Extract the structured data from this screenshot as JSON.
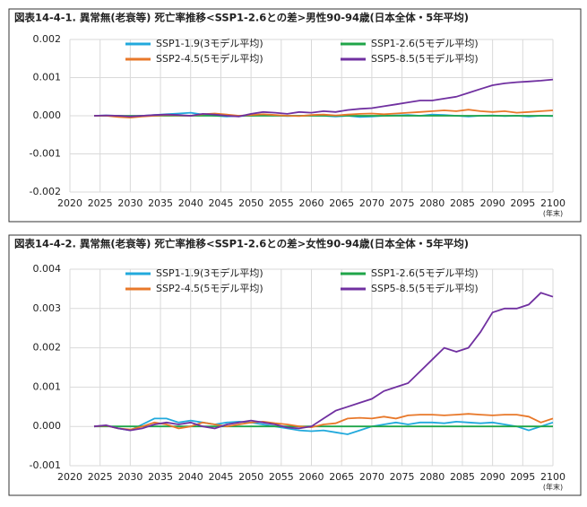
{
  "chart_data": [
    {
      "type": "line",
      "title": "図表14-4-1. 異常無(老衰等) 死亡率推移<SSP1-2.6との差>男性90-94歳(日本全体・5年平均)",
      "x_unit": "(年末)",
      "x": [
        2024,
        2026,
        2028,
        2030,
        2032,
        2034,
        2036,
        2038,
        2040,
        2042,
        2044,
        2046,
        2048,
        2050,
        2052,
        2054,
        2056,
        2058,
        2060,
        2062,
        2064,
        2066,
        2068,
        2070,
        2072,
        2074,
        2076,
        2078,
        2080,
        2082,
        2084,
        2086,
        2088,
        2090,
        2092,
        2094,
        2096,
        2098,
        2100
      ],
      "xlim": [
        2020,
        2100
      ],
      "xticks": [
        2020,
        2025,
        2030,
        2035,
        2040,
        2045,
        2050,
        2055,
        2060,
        2065,
        2070,
        2075,
        2080,
        2085,
        2090,
        2095,
        2100
      ],
      "ylim": [
        -0.002,
        0.002
      ],
      "yticks": [
        -0.002,
        -0.001,
        {
          "value": 0,
          "label": "0.000"
        },
        0.001,
        0.002
      ],
      "grid": true,
      "series": [
        {
          "name": "SSP1-1.9(3モデル平均)",
          "color": "#21a9dc",
          "values": [
            0,
            1e-05,
            0,
            -2e-05,
            0,
            2e-05,
            4e-05,
            6e-05,
            8e-05,
            3e-05,
            0,
            -2e-05,
            -1e-05,
            0,
            2e-05,
            1e-05,
            -1e-05,
            0,
            1e-05,
            0,
            -2e-05,
            0,
            -3e-05,
            -2e-05,
            0,
            1e-05,
            2e-05,
            0,
            3e-05,
            2e-05,
            0,
            -2e-05,
            0,
            1e-05,
            -1e-05,
            0,
            -2e-05,
            0,
            -1e-05
          ]
        },
        {
          "name": "SSP1-2.6(5モデル平均)",
          "color": "#1fa548",
          "values": [
            0,
            0,
            0,
            0,
            0,
            0,
            0,
            0,
            0,
            0,
            0,
            0,
            0,
            0,
            0,
            0,
            0,
            0,
            0,
            0,
            0,
            0,
            0,
            0,
            0,
            0,
            0,
            0,
            0,
            0,
            0,
            0,
            0,
            0,
            0,
            0,
            0,
            0,
            0
          ]
        },
        {
          "name": "SSP2-4.5(5モデル平均)",
          "color": "#e8782a",
          "values": [
            0,
            0,
            -3e-05,
            -5e-05,
            -2e-05,
            0,
            2e-05,
            1e-05,
            0,
            4e-05,
            6e-05,
            3e-05,
            0,
            2e-05,
            4e-05,
            2e-05,
            0,
            -1e-05,
            2e-05,
            3e-05,
            1e-05,
            3e-05,
            5e-05,
            6e-05,
            4e-05,
            6e-05,
            8e-05,
            0.0001,
            0.00012,
            0.00014,
            0.00012,
            0.00016,
            0.00012,
            0.0001,
            0.00012,
            8e-05,
            0.0001,
            0.00012,
            0.00014
          ]
        },
        {
          "name": "SSP5-8.5(5モデル平均)",
          "color": "#7030a0",
          "values": [
            0,
            1e-05,
            0,
            -2e-05,
            0,
            2e-05,
            3e-05,
            2e-05,
            0,
            5e-05,
            3e-05,
            0,
            -2e-05,
            5e-05,
            0.0001,
            8e-05,
            5e-05,
            0.0001,
            8e-05,
            0.00012,
            0.0001,
            0.00015,
            0.00018,
            0.0002,
            0.00025,
            0.0003,
            0.00035,
            0.0004,
            0.0004,
            0.00045,
            0.0005,
            0.0006,
            0.0007,
            0.0008,
            0.00085,
            0.00088,
            0.0009,
            0.00092,
            0.00095
          ]
        }
      ]
    },
    {
      "type": "line",
      "title": "図表14-4-2. 異常無(老衰等) 死亡率推移<SSP1-2.6との差>女性90-94歳(日本全体・5年平均)",
      "x_unit": "(年末)",
      "x": [
        2024,
        2026,
        2028,
        2030,
        2032,
        2034,
        2036,
        2038,
        2040,
        2042,
        2044,
        2046,
        2048,
        2050,
        2052,
        2054,
        2056,
        2058,
        2060,
        2062,
        2064,
        2066,
        2068,
        2070,
        2072,
        2074,
        2076,
        2078,
        2080,
        2082,
        2084,
        2086,
        2088,
        2090,
        2092,
        2094,
        2096,
        2098,
        2100
      ],
      "xlim": [
        2020,
        2100
      ],
      "xticks": [
        2020,
        2025,
        2030,
        2035,
        2040,
        2045,
        2050,
        2055,
        2060,
        2065,
        2070,
        2075,
        2080,
        2085,
        2090,
        2095,
        2100
      ],
      "ylim": [
        -0.001,
        0.004
      ],
      "yticks": [
        -0.001,
        {
          "value": 0,
          "label": "0.000"
        },
        0.001,
        0.002,
        0.003,
        0.004
      ],
      "grid": true,
      "series": [
        {
          "name": "SSP1-1.9(3モデル平均)",
          "color": "#21a9dc",
          "values": [
            0,
            2e-05,
            -5e-05,
            -0.0001,
            5e-05,
            0.0002,
            0.0002,
            0.0001,
            0.00015,
            0.0001,
            5e-05,
            0.0001,
            0.00012,
            0.0001,
            5e-05,
            0,
            -5e-05,
            -0.0001,
            -0.00012,
            -0.0001,
            -0.00015,
            -0.0002,
            -0.0001,
            0,
            5e-05,
            0.0001,
            5e-05,
            0.0001,
            0.0001,
            8e-05,
            0.00012,
            0.0001,
            8e-05,
            0.0001,
            5e-05,
            0,
            -0.0001,
            0,
            0.0001
          ]
        },
        {
          "name": "SSP1-2.6(5モデル平均)",
          "color": "#1fa548",
          "values": [
            0,
            0,
            0,
            0,
            0,
            0,
            0,
            0,
            0,
            0,
            0,
            0,
            0,
            0,
            0,
            0,
            0,
            0,
            0,
            0,
            0,
            0,
            0,
            0,
            0,
            0,
            0,
            0,
            0,
            0,
            0,
            0,
            0,
            0,
            0,
            0,
            0,
            0,
            0
          ]
        },
        {
          "name": "SSP2-4.5(5モデル平均)",
          "color": "#e8782a",
          "values": [
            0,
            2e-05,
            -5e-05,
            -8e-05,
            0,
            0.0001,
            5e-05,
            -5e-05,
            0,
            0.0001,
            5e-05,
            0,
            5e-05,
            0.0001,
            0.00012,
            8e-05,
            5e-05,
            0,
            -2e-05,
            5e-05,
            8e-05,
            0.0002,
            0.00022,
            0.0002,
            0.00025,
            0.0002,
            0.00028,
            0.0003,
            0.0003,
            0.00028,
            0.0003,
            0.00032,
            0.0003,
            0.00028,
            0.0003,
            0.0003,
            0.00025,
            0.0001,
            0.0002
          ]
        },
        {
          "name": "SSP5-8.5(5モデル平均)",
          "color": "#7030a0",
          "values": [
            0,
            3e-05,
            -5e-05,
            -0.0001,
            -5e-05,
            5e-05,
            0.0001,
            5e-05,
            0.0001,
            0,
            -5e-05,
            5e-05,
            0.0001,
            0.00015,
            0.0001,
            5e-05,
            -3e-05,
            -5e-05,
            0,
            0.0002,
            0.0004,
            0.0005,
            0.0006,
            0.0007,
            0.0009,
            0.001,
            0.0011,
            0.0014,
            0.0017,
            0.002,
            0.0019,
            0.002,
            0.0024,
            0.0029,
            0.003,
            0.003,
            0.0031,
            0.0034,
            0.0033
          ]
        }
      ]
    }
  ]
}
